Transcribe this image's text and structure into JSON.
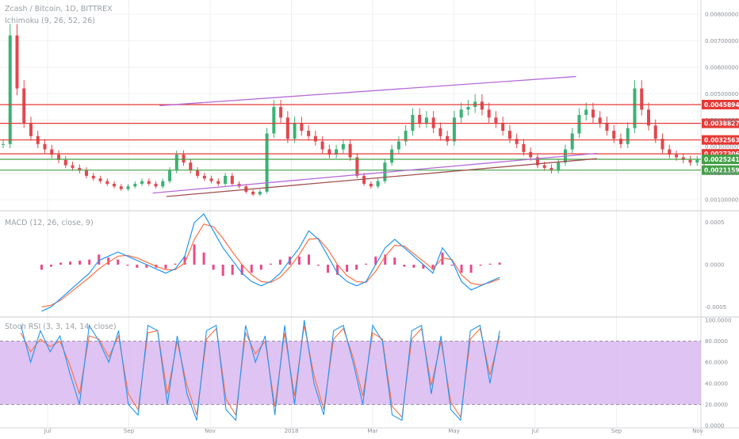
{
  "header": {
    "symbol": "Zcash / Bitcoin, 1D, BITTREX",
    "ichimoku": "Ichimoku (9, 26, 52, 26)",
    "macd": "MACD (12, 26, close, 9)",
    "stoch": "Stoch RSI (3, 3, 14, 14, close)"
  },
  "colors": {
    "up": "#3bb273",
    "down": "#e0484e",
    "red_level": "#e53935",
    "green_level": "#43a047",
    "channel": "#b46bd6",
    "trend": "#a05050",
    "macd_line": "#2196f3",
    "signal_line": "#ff7043",
    "hist": "#e84a8a",
    "stoch_band": "#d9b8f0"
  },
  "chart_data": [
    {
      "type": "line",
      "title": "Zcash / Bitcoin, 1D, BITTREX",
      "xlabel": "",
      "ylabel": "",
      "x_ticks": [
        "Jul",
        "Sep",
        "Nov",
        "2018",
        "Mar",
        "May",
        "Jul",
        "Sep",
        "Nov"
      ],
      "y_ticks": [
        "0.00800000",
        "0.00700000",
        "0.00600000",
        "0.00500000",
        "0.00400000",
        "0.00300000",
        "0.00200000",
        "0.00100000"
      ],
      "ylim": [
        0.0007,
        0.0083
      ],
      "price_levels": [
        {
          "label": "0.00458945",
          "value": 0.00458945,
          "color": "red"
        },
        {
          "label": "0.00388274",
          "value": 0.00388274,
          "color": "red"
        },
        {
          "label": "0.00325635",
          "value": 0.00325635,
          "color": "red"
        },
        {
          "label": "0.00273063",
          "value": 0.00273063,
          "color": "red"
        },
        {
          "label": "0.00252412",
          "value": 0.00252412,
          "color": "green"
        },
        {
          "label": "0.00211598",
          "value": 0.00211598,
          "color": "green"
        }
      ],
      "close_series": [
        0.0031,
        0.0072,
        0.0052,
        0.0039,
        0.0034,
        0.0031,
        0.0029,
        0.0027,
        0.0025,
        0.0023,
        0.0022,
        0.0021,
        0.0019,
        0.0018,
        0.0017,
        0.0016,
        0.0015,
        0.0014,
        0.0015,
        0.0016,
        0.0017,
        0.0016,
        0.0015,
        0.0017,
        0.0021,
        0.0027,
        0.0024,
        0.0021,
        0.0019,
        0.0018,
        0.0017,
        0.0016,
        0.0019,
        0.0016,
        0.0015,
        0.0013,
        0.0012,
        0.0013,
        0.0035,
        0.0045,
        0.0041,
        0.0033,
        0.0039,
        0.0036,
        0.0034,
        0.0032,
        0.0029,
        0.0027,
        0.0029,
        0.0031,
        0.0026,
        0.0019,
        0.0016,
        0.0015,
        0.0017,
        0.0024,
        0.0029,
        0.0032,
        0.0036,
        0.0042,
        0.0039,
        0.0041,
        0.0037,
        0.0034,
        0.0032,
        0.0041,
        0.0044,
        0.0045,
        0.0047,
        0.0044,
        0.0041,
        0.0039,
        0.0036,
        0.0033,
        0.0031,
        0.0028,
        0.0026,
        0.0023,
        0.0022,
        0.0021,
        0.0024,
        0.0029,
        0.0035,
        0.0042,
        0.0044,
        0.0041,
        0.0039,
        0.0036,
        0.0033,
        0.0031,
        0.0037,
        0.0052,
        0.0044,
        0.0038,
        0.0033,
        0.0029,
        0.0027,
        0.0026,
        0.0025,
        0.0024,
        0.0025,
        0.0024
      ],
      "close_xlim": [
        0,
        101
      ],
      "channel_lines": [
        {
          "from": [
            23,
            0.00455
          ],
          "to": [
            83,
            0.00565
          ]
        },
        {
          "from": [
            22,
            0.00125
          ],
          "to": [
            86,
            0.00275
          ]
        },
        {
          "from": [
            24,
            0.00112
          ],
          "to": [
            86,
            0.00255
          ]
        }
      ]
    },
    {
      "type": "line",
      "title": "MACD (12, 26, close, 9)",
      "y_ticks": [
        "0.0005",
        "0.0000",
        "-0.0005"
      ],
      "ylim": [
        -0.0006,
        0.0006
      ],
      "macd": [
        -0.00055,
        -0.0005,
        -0.0004,
        -0.0003,
        -0.0002,
        -0.0001,
        5e-05,
        0.0001,
        0.00015,
        0.0001,
        5e-05,
        0.0,
        -5e-05,
        -0.0001,
        -5e-05,
        0.0001,
        0.0005,
        0.0006,
        0.0004,
        0.0002,
        5e-05,
        -0.0001,
        -0.0002,
        -0.00025,
        -0.0002,
        -0.0001,
        5e-05,
        0.0002,
        0.0004,
        0.0003,
        0.0001,
        -0.0001,
        -0.0002,
        -0.00025,
        -0.0002,
        0.0,
        0.0002,
        0.0003,
        0.0002,
        0.0001,
        0.0,
        -0.0001,
        0.0002,
        5e-05,
        -0.0002,
        -0.0003,
        -0.00025,
        -0.0002,
        -0.00015
      ],
      "signal": [
        -0.0005,
        -0.00048,
        -0.00042,
        -0.00033,
        -0.00024,
        -0.00015,
        -5e-05,
        3e-05,
        0.0001,
        0.00011,
        8e-05,
        3e-05,
        -2e-05,
        -6e-05,
        -6e-05,
        2e-05,
        0.0003,
        0.00048,
        0.00045,
        0.00031,
        0.00015,
        0.0,
        -0.00012,
        -0.0002,
        -0.00021,
        -0.00015,
        -3e-05,
        0.00012,
        0.0003,
        0.00031,
        0.00018,
        0.0,
        -0.00013,
        -0.0002,
        -0.00021,
        -8e-05,
        0.0001,
        0.00023,
        0.00022,
        0.00013,
        4e-05,
        -5e-05,
        8e-05,
        6e-05,
        -0.00012,
        -0.00022,
        -0.00024,
        -0.00021,
        -0.00017
      ],
      "x_start": 6,
      "x_end": 72
    },
    {
      "type": "line",
      "title": "Stoch RSI (3, 3, 14, 14, close)",
      "y_ticks": [
        "100.0000",
        "80.0000",
        "60.0000",
        "40.0000",
        "20.0000",
        "0.0000"
      ],
      "ylim": [
        0,
        100
      ],
      "band": [
        20,
        80
      ],
      "k": [
        95,
        60,
        90,
        70,
        85,
        50,
        20,
        95,
        80,
        60,
        90,
        20,
        10,
        95,
        90,
        20,
        85,
        30,
        5,
        90,
        95,
        15,
        5,
        95,
        60,
        85,
        10,
        95,
        20,
        100,
        40,
        10,
        90,
        95,
        60,
        20,
        95,
        80,
        10,
        5,
        90,
        95,
        30,
        85,
        15,
        5,
        90,
        95,
        40,
        90
      ],
      "d": [
        88,
        70,
        82,
        75,
        80,
        58,
        30,
        85,
        82,
        65,
        85,
        30,
        15,
        88,
        90,
        30,
        80,
        38,
        10,
        82,
        92,
        25,
        10,
        88,
        68,
        80,
        18,
        88,
        28,
        95,
        48,
        15,
        82,
        92,
        65,
        28,
        88,
        82,
        18,
        8,
        82,
        92,
        38,
        80,
        22,
        8,
        82,
        92,
        48,
        85
      ],
      "x_start": 3,
      "x_end": 72
    }
  ],
  "x_labels": [
    "Jul",
    "Sep",
    "Nov",
    "2018",
    "Mar",
    "May",
    "Jul",
    "Sep",
    "Nov"
  ]
}
